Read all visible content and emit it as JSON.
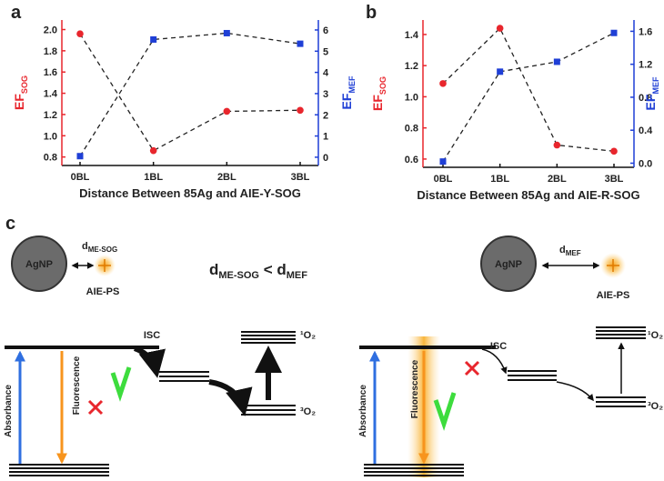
{
  "chart_data": [
    {
      "type": "line",
      "panel": "a",
      "xlabel": "Distance Between 85Ag and AIE-Y-SOG",
      "ylabel": "EF",
      "ylabel_sub": "SOG",
      "y2label": "EF",
      "y2label_sub": "MEF",
      "categories": [
        "0BL",
        "1BL",
        "2BL",
        "3BL"
      ],
      "series": [
        {
          "color": "#e8262d",
          "marker": "circle",
          "values": [
            1.96,
            0.86,
            1.23,
            1.24
          ]
        },
        {
          "color": "#1f3fd6",
          "marker": "square",
          "axis": "y2",
          "values": [
            0.05,
            5.55,
            5.85,
            5.35
          ]
        }
      ],
      "ylim": [
        0.72,
        2.09
      ],
      "yticks": [
        0.8,
        {
          "value": 1.0,
          "label": "1.0"
        },
        1.2,
        1.4,
        1.6,
        1.8,
        {
          "value": 2.0,
          "label": "2.0"
        }
      ],
      "y2lim": [
        -0.39,
        6.47
      ],
      "y2ticks": [
        0,
        1,
        2,
        3,
        4,
        5,
        6
      ]
    },
    {
      "type": "line",
      "panel": "b",
      "xlabel": "Distance Between 85Ag and AIE-R-SOG",
      "ylabel": "EF",
      "ylabel_sub": "SOG",
      "y2label": "EF",
      "y2label_sub": "MEF",
      "categories": [
        "0BL",
        "1BL",
        "2BL",
        "3BL"
      ],
      "series": [
        {
          "color": "#e8262d",
          "marker": "circle",
          "values": [
            1.085,
            1.44,
            0.69,
            0.65
          ]
        },
        {
          "color": "#1f3fd6",
          "marker": "square",
          "axis": "y2",
          "values": [
            0.02,
            1.11,
            1.23,
            1.58
          ]
        }
      ],
      "ylim": [
        0.547,
        1.493
      ],
      "yticks": [
        0.6,
        0.8,
        {
          "value": 1.0,
          "label": "1.0"
        },
        1.2,
        1.4
      ],
      "y2lim": [
        -0.05,
        1.737
      ],
      "y2ticks": [
        {
          "value": 0,
          "label": "0.0"
        },
        0.4,
        0.8,
        1.2,
        1.6
      ]
    }
  ],
  "diagram": {
    "panel": "c",
    "relation": [
      "d",
      "ME-SOG",
      " < d",
      "MEF"
    ],
    "left": {
      "particle": "AgNP",
      "distance": "d",
      "distance_sub": "ME-SOG",
      "ps": "AIE-PS",
      "absorbance": "Absorbance",
      "fluorescence": "Fluorescence",
      "isc": "ISC",
      "singlet": "¹O₂",
      "triplet": "³O₂"
    },
    "right": {
      "particle": "AgNP",
      "distance": "d",
      "distance_sub": "MEF",
      "ps": "AIE-PS",
      "absorbance": "Absorbance",
      "fluorescence": "Fluorescence",
      "isc": "ISC",
      "singlet": "¹O₂",
      "triplet": "³O₂"
    }
  }
}
